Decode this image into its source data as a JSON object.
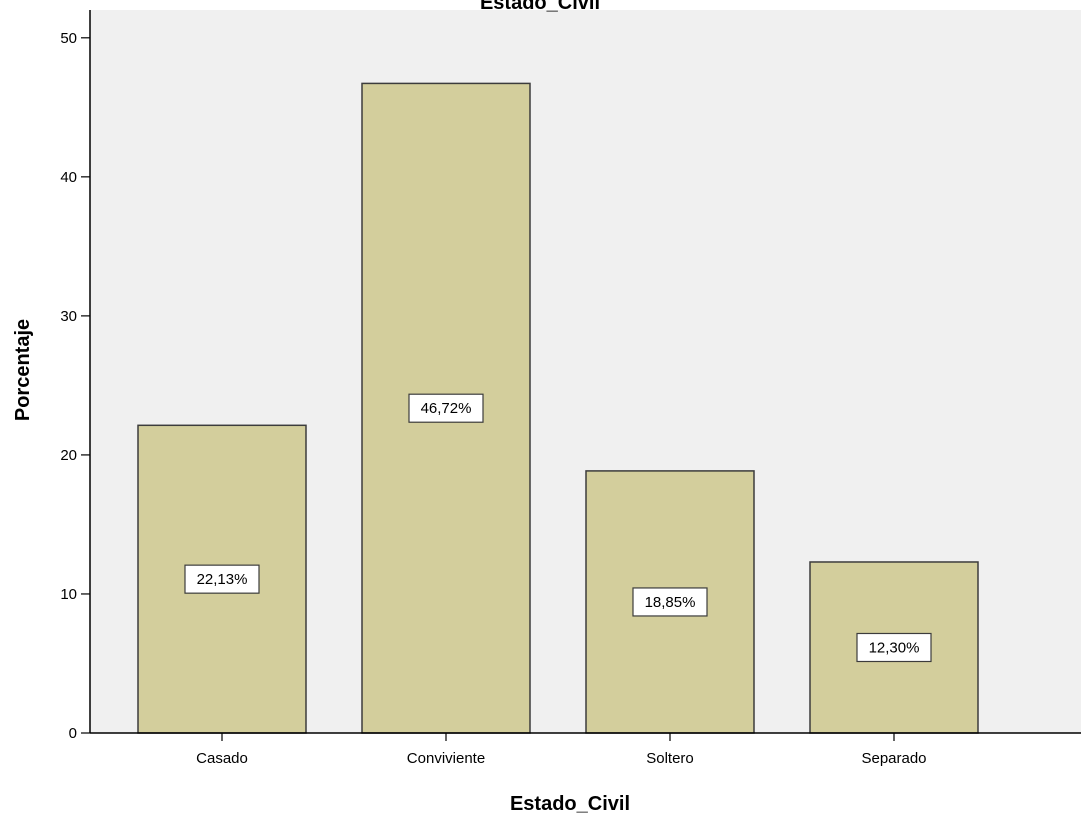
{
  "chart_data": {
    "type": "bar",
    "title": "Estado_Civil",
    "xlabel": "Estado_Civil",
    "ylabel": "Porcentaje",
    "categories": [
      "Casado",
      "Conviviente",
      "Soltero",
      "Separado"
    ],
    "values": [
      22.13,
      46.72,
      18.85,
      12.3
    ],
    "data_labels": [
      "22,13%",
      "46,72%",
      "18,85%",
      "12,30%"
    ],
    "ylim": [
      0,
      52
    ],
    "yticks": [
      0,
      10,
      20,
      30,
      40,
      50
    ],
    "ytick_labels": [
      "0",
      "10",
      "20",
      "30",
      "40",
      "50"
    ],
    "grid": false,
    "legend": "none",
    "colors": {
      "bar_fill": "#d3ce9c",
      "bar_stroke": "#3c3c3c",
      "plot_background": "#f0f0f0",
      "label_box": "#ffffff"
    }
  }
}
